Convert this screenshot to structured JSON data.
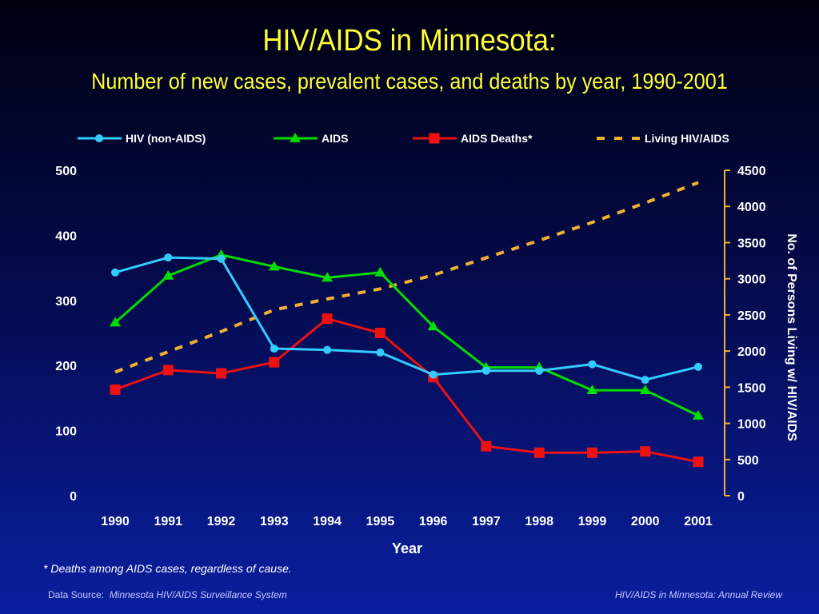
{
  "chart_data": {
    "type": "line",
    "title": "HIV/AIDS in Minnesota:",
    "subtitle": "Number of new cases, prevalent cases, and deaths by year, 1990-2001",
    "xlabel": "Year",
    "ylabel": "",
    "y2label": "No. of Persons Living w/ HIV/AIDS",
    "categories": [
      "1990",
      "1991",
      "1992",
      "1993",
      "1994",
      "1995",
      "1996",
      "1997",
      "1998",
      "1999",
      "2000",
      "2001"
    ],
    "ylim": [
      0,
      500
    ],
    "yticks": [
      "0",
      "100",
      "200",
      "300",
      "400",
      "500"
    ],
    "y2lim": [
      0,
      4500
    ],
    "y2ticks": [
      "0",
      "500",
      "1000",
      "1500",
      "2000",
      "2500",
      "3000",
      "3500",
      "4000",
      "4500"
    ],
    "legend_placement": "top",
    "series": [
      {
        "name": "HIV (non-AIDS)",
        "axis": "left",
        "color": "#33ccff",
        "marker": "circle",
        "style": "solid",
        "values": [
          343,
          366,
          364,
          226,
          224,
          220,
          186,
          192,
          192,
          202,
          178,
          198
        ]
      },
      {
        "name": "AIDS",
        "axis": "left",
        "color": "#00dd00",
        "marker": "triangle",
        "style": "solid",
        "values": [
          266,
          338,
          370,
          352,
          335,
          343,
          260,
          197,
          197,
          162,
          162,
          123
        ]
      },
      {
        "name": "AIDS Deaths*",
        "axis": "left",
        "color": "#ee1111",
        "marker": "square",
        "style": "solid",
        "values": [
          163,
          193,
          188,
          205,
          272,
          250,
          182,
          76,
          66,
          66,
          68,
          52
        ]
      },
      {
        "name": "Living HIV/AIDS",
        "axis": "right",
        "color": "#f0b030",
        "marker": "none",
        "style": "dashed",
        "values": [
          1710,
          1990,
          2270,
          2570,
          2720,
          2860,
          3050,
          3290,
          3530,
          3780,
          4050,
          4330
        ]
      }
    ]
  },
  "footnote": "*  Deaths among AIDS cases, regardless of cause.",
  "source_label": "Data Source:",
  "source_name": "Minnesota HIV/AIDS Surveillance System",
  "report_name": "HIV/AIDS in Minnesota: Annual Review"
}
